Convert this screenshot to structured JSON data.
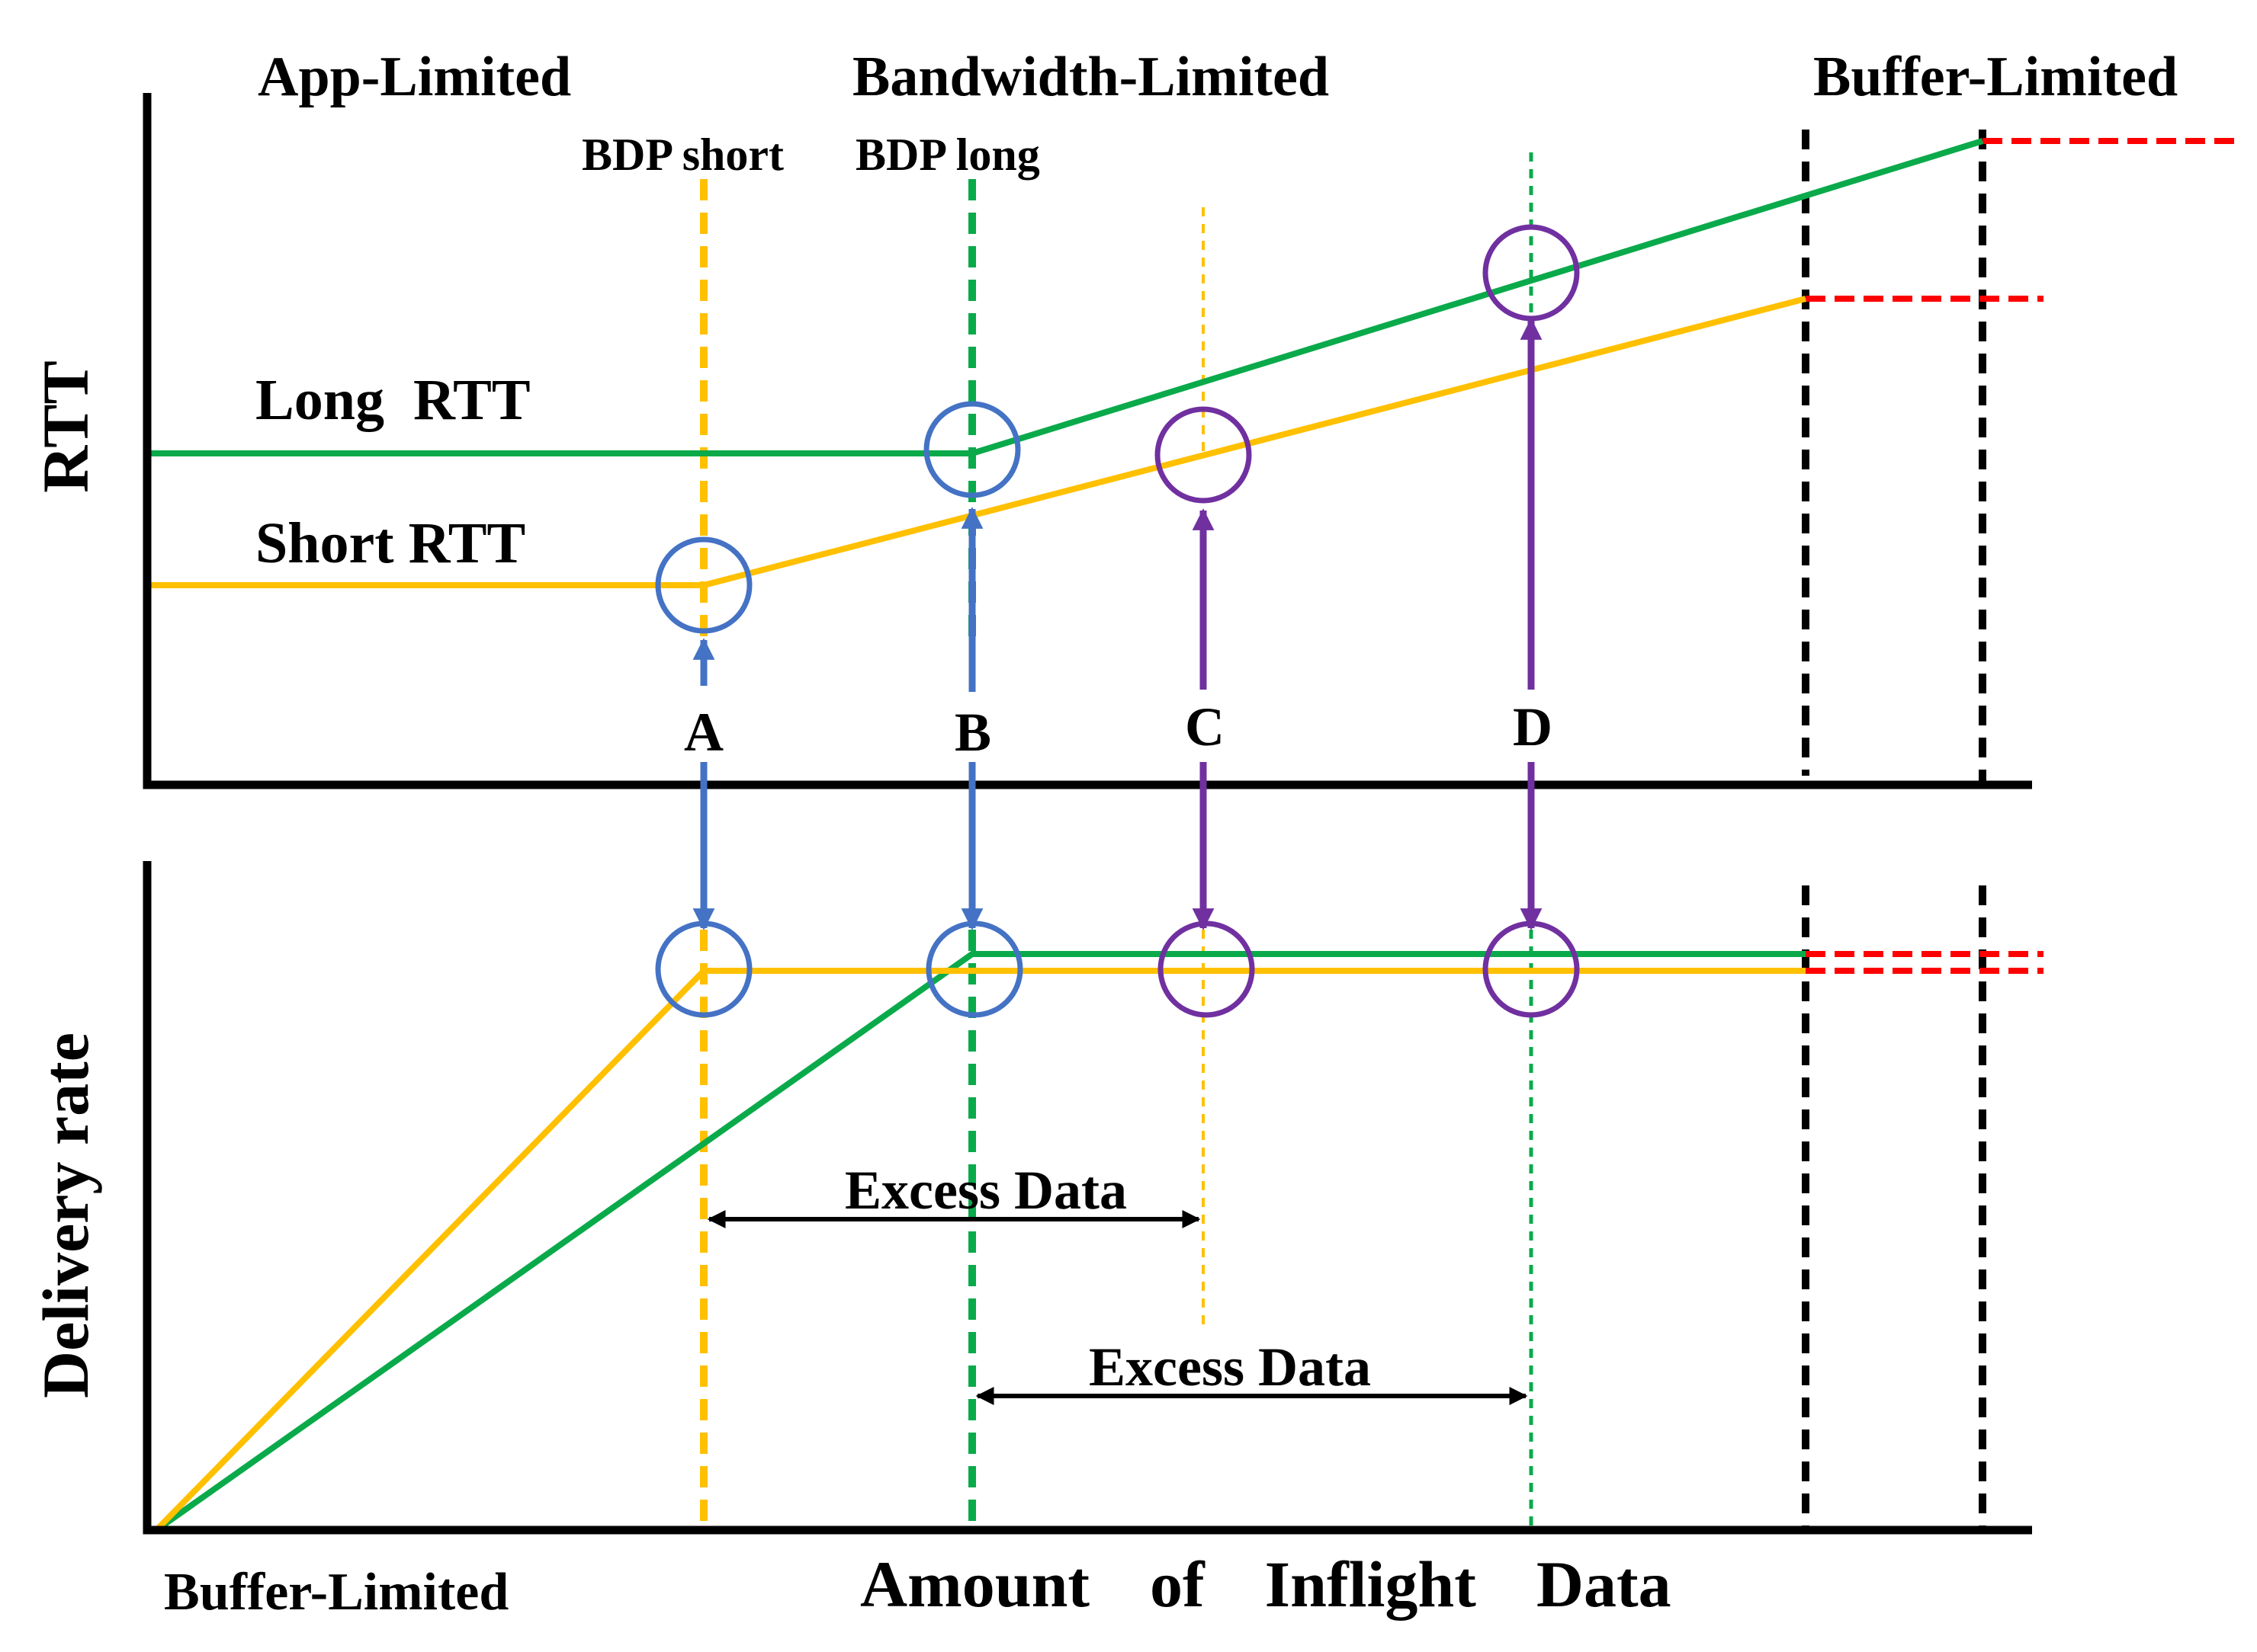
{
  "labels": {
    "app_limited": "App-Limited",
    "bandwidth_limited": "Bandwidth-Limited",
    "buffer_limited_top": "Buffer-Limited",
    "buffer_limited_bottom": "Buffer-Limited",
    "bdp_short": "BDP short",
    "bdp_long": "BDP long",
    "long_rtt": "Long  RTT",
    "short_rtt": "Short RTT",
    "point_a": "A",
    "point_b": "B",
    "point_c": "C",
    "point_d": "D",
    "excess_data_1": "Excess Data",
    "excess_data_2": "Excess Data",
    "x_axis": "Amount  of  Inflight  Data",
    "y_axis_top": "RTT",
    "y_axis_bottom": "Delivery rate"
  },
  "colors": {
    "long_rtt_series": "#0aaa4b",
    "short_rtt_series": "#ffc000",
    "marker_blue": "#4472c4",
    "marker_purple": "#7030a0",
    "limit_red": "#ff0000",
    "limit_black": "#000000"
  }
}
